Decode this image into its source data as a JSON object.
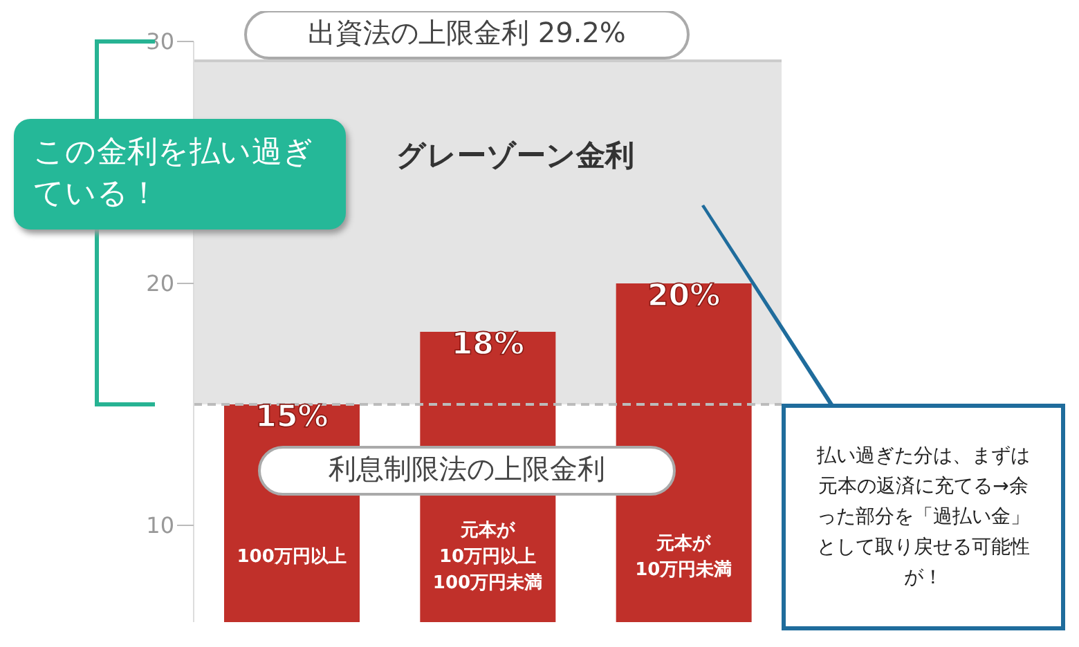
{
  "chart_data": {
    "type": "bar",
    "categories": [
      "100万円以上",
      "元本が\n10万円以上\n100万円未満",
      "元本が\n10万円未満"
    ],
    "values": [
      15,
      18,
      20
    ],
    "value_labels": [
      "15%",
      "18%",
      "20%"
    ],
    "color": "#c0302a",
    "ylim": [
      6,
      30
    ],
    "yticks": [
      10,
      20,
      30
    ],
    "grid": false,
    "bands": [
      {
        "axis": "y",
        "from": 15,
        "to": 29.2,
        "label": "グレーゾーン金利",
        "color": "#e4e4e4"
      }
    ],
    "ref_lines": [
      {
        "axis": "y",
        "value": 29.2,
        "label": "出資法の上限金利 29.2%",
        "color": "#cccccc",
        "line_style": "solid"
      },
      {
        "axis": "y",
        "value": 15,
        "label": "利息制限法の上限金利",
        "color": "#bbbbbb",
        "line_style": "dashed"
      }
    ],
    "annotations": [
      "この金利を払い過ぎている！",
      "払い過ぎた分は、まずは元本の返済に充てる→余った部分を「過払い金」として取り戻せる可能性が！"
    ]
  }
}
